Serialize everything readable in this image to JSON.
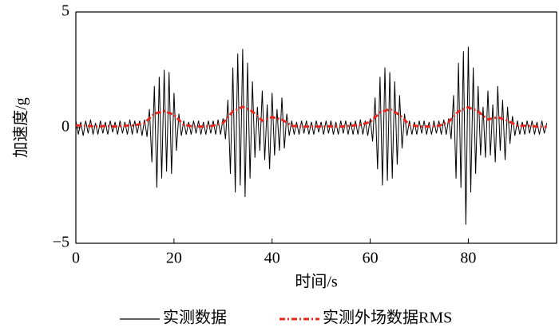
{
  "chart_data": {
    "type": "line",
    "xlabel": "时间/s",
    "ylabel": "加速度/g",
    "xlim": [
      0,
      98
    ],
    "xticks": [
      0,
      20,
      40,
      60,
      80
    ],
    "ylim": [
      -5,
      5
    ],
    "yticks": [
      {
        "value": -5,
        "label": "−5"
      },
      0,
      5
    ],
    "series": [
      {
        "name": "实测数据",
        "color": "#000000",
        "dash": "solid",
        "x": [
          0,
          0.5,
          1,
          1.5,
          2,
          2.5,
          3,
          3.5,
          4,
          4.5,
          5,
          5.5,
          6,
          6.5,
          7,
          7.5,
          8,
          8.5,
          9,
          9.5,
          10,
          10.5,
          11,
          11.5,
          12,
          12.5,
          13,
          13.5,
          14,
          14.5,
          15,
          15.5,
          16,
          16.5,
          17,
          17.5,
          18,
          18.5,
          19,
          19.5,
          20,
          20.5,
          21,
          21.5,
          22,
          22.5,
          23,
          23.5,
          24,
          24.5,
          25,
          25.5,
          26,
          26.5,
          27,
          27.5,
          28,
          28.5,
          29,
          29.5,
          30,
          30.5,
          31,
          31.5,
          32,
          32.5,
          33,
          33.5,
          34,
          34.5,
          35,
          35.5,
          36,
          36.5,
          37,
          37.5,
          38,
          38.5,
          39,
          39.5,
          40,
          40.5,
          41,
          41.5,
          42,
          42.5,
          43,
          43.5,
          44,
          44.5,
          45,
          45.5,
          46,
          46.5,
          47,
          47.5,
          48,
          48.5,
          49,
          49.5,
          50,
          50.5,
          51,
          51.5,
          52,
          52.5,
          53,
          53.5,
          54,
          54.5,
          55,
          55.5,
          56,
          56.5,
          57,
          57.5,
          58,
          58.5,
          59,
          59.5,
          60,
          60.5,
          61,
          61.5,
          62,
          62.5,
          63,
          63.5,
          64,
          64.5,
          65,
          65.5,
          66,
          66.5,
          67,
          67.5,
          68,
          68.5,
          69,
          69.5,
          70,
          70.5,
          71,
          71.5,
          72,
          72.5,
          73,
          73.5,
          74,
          74.5,
          75,
          75.5,
          76,
          76.5,
          77,
          77.5,
          78,
          78.5,
          79,
          79.5,
          80,
          80.5,
          81,
          81.5,
          82,
          82.5,
          83,
          83.5,
          84,
          84.5,
          85,
          85.5,
          86,
          86.5,
          87,
          87.5,
          88,
          88.5,
          89,
          89.5,
          90,
          90.5,
          91,
          91.5,
          92,
          92.5,
          93,
          93.5,
          94,
          94.5,
          95,
          95.5,
          96
        ],
        "values": [
          0.3,
          -0.3,
          0.25,
          -0.35,
          0.3,
          -0.25,
          0.35,
          -0.3,
          0.2,
          -0.3,
          0.3,
          -0.25,
          0.25,
          -0.3,
          0.3,
          -0.2,
          0.25,
          -0.3,
          0.3,
          -0.25,
          0.25,
          -0.3,
          0.35,
          -0.3,
          0.3,
          -0.25,
          0.3,
          -0.35,
          0.35,
          -0.4,
          0.8,
          -1.5,
          1.8,
          -2.6,
          2.2,
          -2.2,
          2.5,
          -1.9,
          2.4,
          -2.0,
          1.5,
          -1.0,
          0.6,
          -0.35,
          0.3,
          -0.3,
          0.25,
          -0.3,
          0.3,
          -0.25,
          0.3,
          -0.3,
          0.25,
          -0.3,
          0.3,
          -0.25,
          0.3,
          -0.3,
          0.35,
          -0.3,
          0.4,
          -0.5,
          1.2,
          -2.0,
          2.6,
          -2.8,
          3.2,
          -2.5,
          3.4,
          -3.0,
          2.8,
          -2.2,
          2.0,
          -1.3,
          0.9,
          -1.0,
          1.6,
          -1.4,
          1.0,
          -1.8,
          1.5,
          -1.2,
          0.8,
          -1.0,
          1.3,
          -0.9,
          0.6,
          -0.35,
          0.3,
          -0.3,
          0.25,
          -0.3,
          0.3,
          -0.25,
          0.3,
          -0.3,
          0.25,
          -0.3,
          0.3,
          -0.2,
          0.25,
          -0.3,
          0.3,
          -0.25,
          0.3,
          -0.3,
          0.25,
          -0.3,
          0.3,
          -0.25,
          0.3,
          -0.3,
          0.25,
          -0.3,
          0.3,
          -0.3,
          0.35,
          -0.3,
          0.3,
          -0.35,
          0.4,
          -0.6,
          1.3,
          -1.8,
          2.2,
          -2.5,
          2.6,
          -2.3,
          2.4,
          -2.2,
          2.0,
          -1.6,
          1.4,
          -0.9,
          0.6,
          -0.35,
          0.3,
          -0.3,
          0.25,
          -0.3,
          0.3,
          -0.25,
          0.3,
          -0.3,
          0.25,
          -0.3,
          0.3,
          -0.25,
          0.3,
          -0.3,
          0.35,
          -0.3,
          0.4,
          -0.5,
          1.4,
          -2.2,
          2.8,
          -2.6,
          3.3,
          -4.2,
          3.5,
          -2.8,
          2.6,
          -2.0,
          1.8,
          -1.2,
          0.9,
          -1.3,
          1.6,
          -1.2,
          1.0,
          -1.5,
          1.8,
          -1.0,
          1.2,
          -1.4,
          0.9,
          -0.7,
          0.5,
          -0.35,
          0.3,
          -0.3,
          0.25,
          -0.3,
          0.3,
          -0.25,
          0.3,
          -0.3,
          0.25,
          -0.3,
          0.3,
          -0.25,
          0.2
        ]
      },
      {
        "name": "实测外场数据RMS",
        "color": "#e8281e",
        "dash": "dashdot",
        "x": [
          0,
          2,
          4,
          6,
          8,
          10,
          12,
          14,
          16,
          18,
          20,
          22,
          24,
          26,
          28,
          30,
          32,
          34,
          36,
          38,
          40,
          42,
          44,
          46,
          48,
          50,
          52,
          54,
          56,
          58,
          60,
          62,
          64,
          66,
          68,
          70,
          72,
          74,
          76,
          78,
          80,
          82,
          84,
          86,
          88,
          90,
          92,
          94,
          96
        ],
        "values": [
          0.1,
          0.08,
          0.05,
          0.07,
          0.05,
          0.08,
          0.1,
          0.2,
          0.6,
          0.72,
          0.55,
          0.12,
          0.05,
          0.05,
          0.08,
          0.2,
          0.7,
          0.9,
          0.7,
          0.3,
          0.45,
          0.35,
          0.08,
          0.05,
          0.05,
          0.05,
          0.06,
          0.05,
          0.08,
          0.12,
          0.25,
          0.65,
          0.8,
          0.55,
          0.12,
          0.05,
          0.05,
          0.08,
          0.25,
          0.7,
          0.88,
          0.7,
          0.35,
          0.45,
          0.3,
          0.08,
          0.08,
          0.05,
          0.03
        ]
      }
    ]
  }
}
